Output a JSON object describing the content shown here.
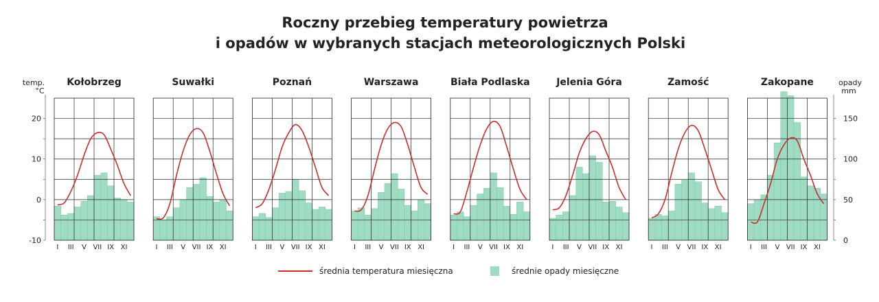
{
  "chart_data": {
    "type": "bar+line",
    "title_lines": [
      "Roczny przebieg temperatury powietrza",
      "i opadów w wybranych stacjach meteorologicznych Polski"
    ],
    "left_axis": {
      "label_lines": [
        "temp.",
        "°C"
      ],
      "ticks": [
        -10,
        0,
        10,
        20
      ],
      "range": [
        -10,
        25
      ]
    },
    "right_axis": {
      "label_lines": [
        "opady",
        "mm"
      ],
      "ticks": [
        0,
        50,
        100,
        150
      ],
      "range": [
        0,
        175
      ]
    },
    "grid": true,
    "month_labels": [
      "I",
      "III",
      "V",
      "VII",
      "IX",
      "XI"
    ],
    "legend": {
      "position": "bottom",
      "temperature": "średnia temperatura miesięczna",
      "precipitation": "średnie opady miesięczne"
    },
    "colors": {
      "temperature": "#cc2b2b",
      "precipitation": "#9fdcc3",
      "precipitation_edge": "#7cc8aa",
      "grid": "#222222"
    },
    "stations": [
      {
        "name": "Kołobrzeg",
        "temperature": [
          -1.3,
          -0.8,
          2,
          6,
          11,
          15,
          16.5,
          16,
          12.5,
          8.5,
          4,
          1
        ],
        "precipitation": [
          42,
          31,
          33,
          41,
          48,
          55,
          80,
          83,
          67,
          52,
          50,
          47
        ]
      },
      {
        "name": "Suwałki",
        "temperature": [
          -4.7,
          -4.5,
          -1,
          6,
          12,
          16,
          17.5,
          16.5,
          12,
          6.5,
          1.5,
          -1.5
        ],
        "precipitation": [
          29,
          25,
          29,
          40,
          50,
          65,
          69,
          77,
          54,
          47,
          50,
          36
        ]
      },
      {
        "name": "Poznań",
        "temperature": [
          -2,
          -1,
          2.5,
          7.5,
          13,
          16.5,
          18.5,
          17,
          13,
          8,
          3,
          1
        ],
        "precipitation": [
          29,
          33,
          28,
          40,
          58,
          60,
          75,
          61,
          46,
          38,
          41,
          38
        ]
      },
      {
        "name": "Warszawa",
        "temperature": [
          -2.8,
          -2.5,
          1,
          7.5,
          13.5,
          17.5,
          19,
          18,
          13.5,
          8,
          3,
          1.3
        ],
        "precipitation": [
          36,
          40,
          31,
          39,
          59,
          70,
          82,
          63,
          43,
          36,
          50,
          45
        ]
      },
      {
        "name": "Biała Podlaska",
        "temperature": [
          -3.5,
          -3,
          2,
          8,
          13.5,
          17.5,
          19.3,
          18,
          13,
          7.5,
          2.5,
          0
        ],
        "precipitation": [
          31,
          35,
          29,
          43,
          57,
          64,
          83,
          65,
          42,
          32,
          47,
          35
        ]
      },
      {
        "name": "Jelenia Góra",
        "temperature": [
          -2.5,
          -2,
          1,
          6,
          11.5,
          15,
          16.8,
          16,
          12,
          8,
          3,
          0
        ],
        "precipitation": [
          27,
          31,
          35,
          55,
          90,
          82,
          104,
          96,
          47,
          48,
          41,
          34
        ]
      },
      {
        "name": "Zamość",
        "temperature": [
          -4.5,
          -3.5,
          0,
          6.5,
          12.5,
          16.5,
          18.3,
          17,
          12.5,
          7.5,
          2.5,
          0
        ],
        "precipitation": [
          27,
          32,
          30,
          36,
          69,
          74,
          83,
          72,
          46,
          39,
          42,
          34
        ]
      },
      {
        "name": "Zakopane",
        "temperature": [
          -5.5,
          -5.5,
          -1,
          4,
          10,
          13.5,
          15.2,
          14.5,
          10,
          6,
          1.5,
          -1
        ],
        "precipitation": [
          45,
          50,
          56,
          80,
          120,
          183,
          178,
          145,
          78,
          67,
          64,
          57
        ]
      }
    ]
  }
}
